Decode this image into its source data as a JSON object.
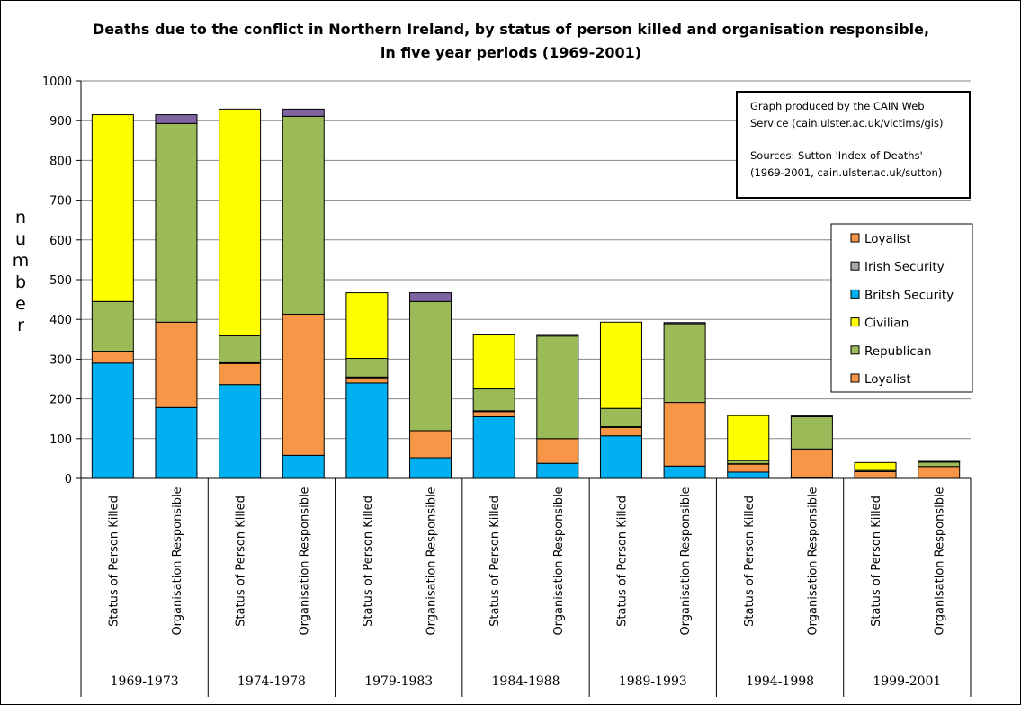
{
  "chart_data": {
    "type": "bar",
    "stacked": true,
    "title_line1": "Deaths due to the conflict in Northern Ireland, by status of person killed and organisation responsible,",
    "title_line2": "in five year periods (1969-2001)",
    "ylabel_letters": [
      "n",
      "u",
      "m",
      "b",
      "e",
      "r"
    ],
    "ylim": [
      0,
      1000
    ],
    "yticks": [
      0,
      100,
      200,
      300,
      400,
      500,
      600,
      700,
      800,
      900,
      1000
    ],
    "grid": true,
    "legend_position": "right",
    "category_labels": [
      "Status of Person Killed",
      "Organisation Responsible"
    ],
    "periods": [
      "1969-1973",
      "1974-1978",
      "1979-1983",
      "1984-1988",
      "1989-1993",
      "1994-1998",
      "1999-2001"
    ],
    "legend": [
      "Loyalist",
      "Irish Security",
      "Britsh Security",
      "Civilian",
      "Republican",
      "Loyalist"
    ],
    "stack_order": [
      "British Security",
      "Loyalist",
      "Irish Security",
      "Republican",
      "Civilian",
      "Other"
    ],
    "colors": {
      "British Security": "#00b0f0",
      "Loyalist": "#f79646",
      "Irish Security": "#a6a6a6",
      "Republican": "#9bbb59",
      "Civilian": "#ffff00",
      "Other": "#8064a2"
    },
    "bars": [
      {
        "period": "1969-1973",
        "category": "Status of Person Killed",
        "values": {
          "British Security": 290,
          "Loyalist": 30,
          "Irish Security": 0,
          "Republican": 125,
          "Civilian": 470,
          "Other": 0
        }
      },
      {
        "period": "1969-1973",
        "category": "Organisation Responsible",
        "values": {
          "British Security": 178,
          "Loyalist": 215,
          "Irish Security": 0,
          "Republican": 500,
          "Civilian": 0,
          "Other": 22
        }
      },
      {
        "period": "1974-1978",
        "category": "Status of Person Killed",
        "values": {
          "British Security": 236,
          "Loyalist": 53,
          "Irish Security": 2,
          "Republican": 68,
          "Civilian": 570,
          "Other": 0
        }
      },
      {
        "period": "1974-1978",
        "category": "Organisation Responsible",
        "values": {
          "British Security": 58,
          "Loyalist": 355,
          "Irish Security": 0,
          "Republican": 498,
          "Civilian": 0,
          "Other": 18
        }
      },
      {
        "period": "1979-1983",
        "category": "Status of Person Killed",
        "values": {
          "British Security": 240,
          "Loyalist": 13,
          "Irish Security": 2,
          "Republican": 47,
          "Civilian": 165,
          "Other": 0
        }
      },
      {
        "period": "1979-1983",
        "category": "Organisation Responsible",
        "values": {
          "British Security": 52,
          "Loyalist": 68,
          "Irish Security": 0,
          "Republican": 325,
          "Civilian": 0,
          "Other": 22
        }
      },
      {
        "period": "1984-1988",
        "category": "Status of Person Killed",
        "values": {
          "British Security": 155,
          "Loyalist": 13,
          "Irish Security": 2,
          "Republican": 55,
          "Civilian": 138,
          "Other": 0
        }
      },
      {
        "period": "1984-1988",
        "category": "Organisation Responsible",
        "values": {
          "British Security": 38,
          "Loyalist": 62,
          "Irish Security": 0,
          "Republican": 258,
          "Civilian": 0,
          "Other": 4
        }
      },
      {
        "period": "1989-1993",
        "category": "Status of Person Killed",
        "values": {
          "British Security": 107,
          "Loyalist": 21,
          "Irish Security": 2,
          "Republican": 46,
          "Civilian": 217,
          "Other": 0
        }
      },
      {
        "period": "1989-1993",
        "category": "Organisation Responsible",
        "values": {
          "British Security": 31,
          "Loyalist": 160,
          "Irish Security": 0,
          "Republican": 198,
          "Civilian": 0,
          "Other": 3
        }
      },
      {
        "period": "1994-1998",
        "category": "Status of Person Killed",
        "values": {
          "British Security": 16,
          "Loyalist": 20,
          "Irish Security": 1,
          "Republican": 8,
          "Civilian": 113,
          "Other": 0
        }
      },
      {
        "period": "1994-1998",
        "category": "Organisation Responsible",
        "values": {
          "British Security": 2,
          "Loyalist": 72,
          "Irish Security": 0,
          "Republican": 81,
          "Civilian": 0,
          "Other": 2
        }
      },
      {
        "period": "1999-2001",
        "category": "Status of Person Killed",
        "values": {
          "British Security": 0,
          "Loyalist": 17,
          "Irish Security": 0,
          "Republican": 3,
          "Civilian": 20,
          "Other": 0
        }
      },
      {
        "period": "1999-2001",
        "category": "Organisation Responsible",
        "values": {
          "British Security": 0,
          "Loyalist": 30,
          "Irish Security": 0,
          "Republican": 11,
          "Civilian": 0,
          "Other": 2
        }
      }
    ],
    "annotation": [
      "Graph produced by the CAIN Web",
      "Service (cain.ulster.ac.uk/victims/gis)",
      "",
      "Sources: Sutton 'Index of Deaths'",
      "(1969-2001,  cain.ulster.ac.uk/sutton)"
    ]
  }
}
